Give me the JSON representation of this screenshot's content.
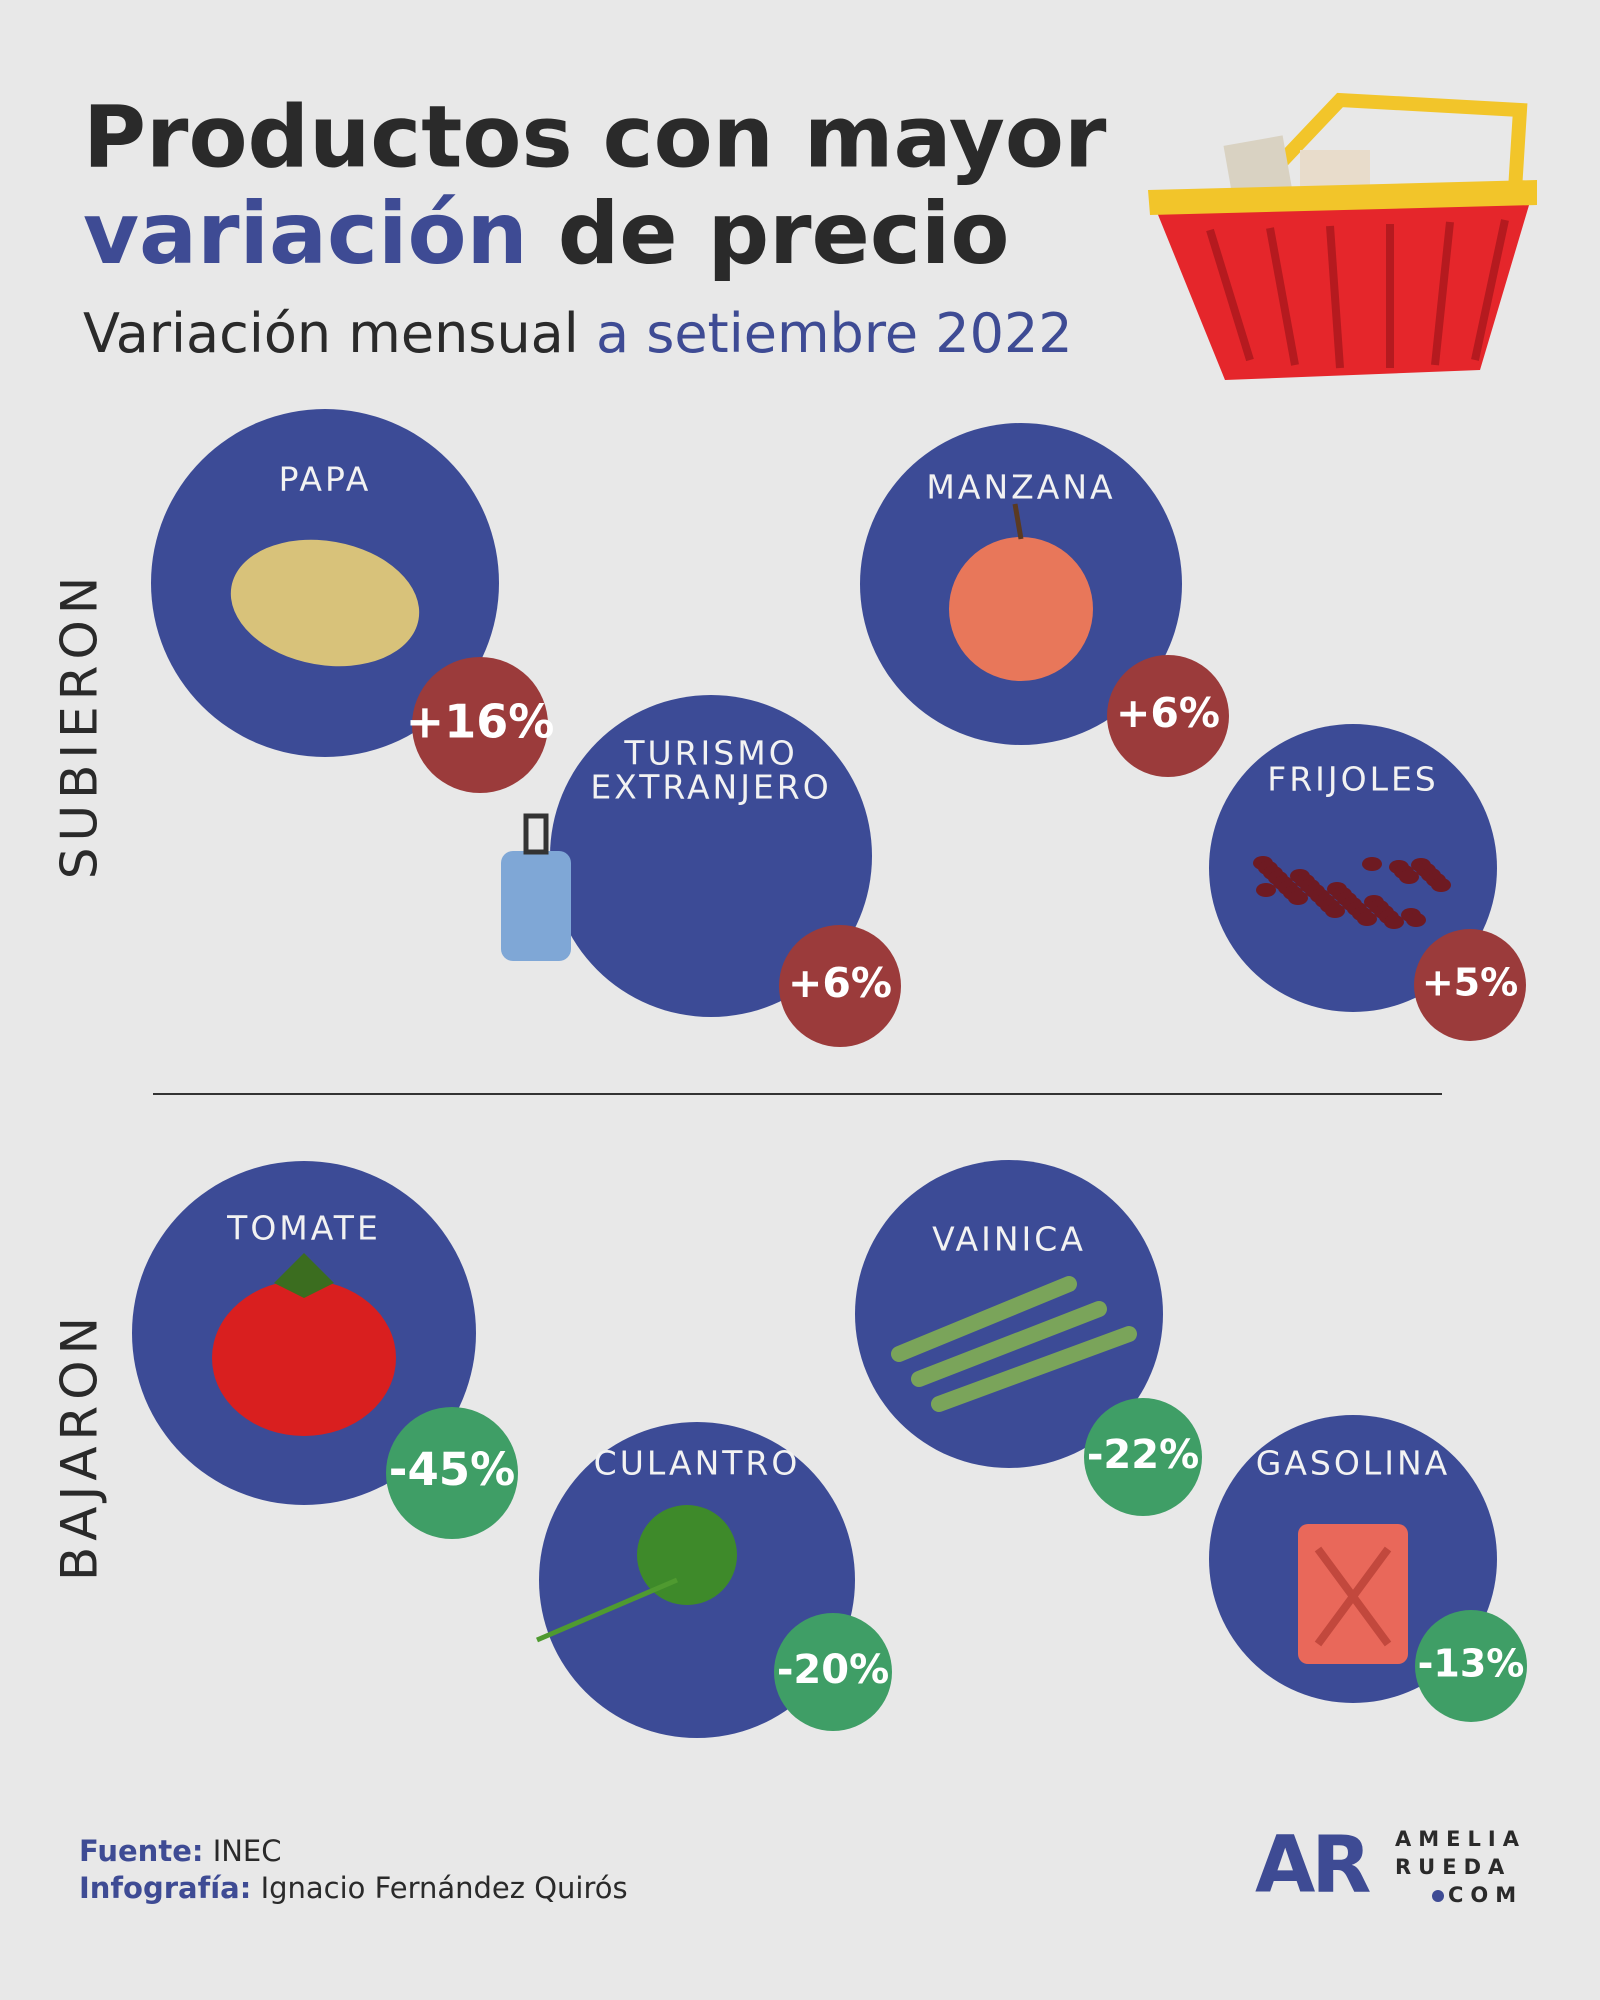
{
  "title": {
    "line1": "Productos con mayor",
    "highlight": "variación",
    "rest": "de precio"
  },
  "subtitle": {
    "plain": "Variación mensual",
    "highlight": "a setiembre 2022"
  },
  "sections": [
    {
      "label": "SUBIERON",
      "items": [
        {
          "name": [
            "PAPA"
          ],
          "change": "+16%"
        },
        {
          "name": [
            "TURISMO",
            "EXTRANJERO"
          ],
          "change": "+6%"
        },
        {
          "name": [
            "MANZANA"
          ],
          "change": "+6%"
        },
        {
          "name": [
            "FRIJOLES"
          ],
          "change": "+5%"
        }
      ]
    },
    {
      "label": "BAJARON",
      "items": [
        {
          "name": [
            "TOMATE"
          ],
          "change": "-45%"
        },
        {
          "name": [
            "CULANTRO"
          ],
          "change": "-20%"
        },
        {
          "name": [
            "VAINICA"
          ],
          "change": "-22%"
        },
        {
          "name": [
            "GASOLINA"
          ],
          "change": "-13%"
        }
      ]
    }
  ],
  "footer": {
    "source_label": "Fuente:",
    "source": "INEC",
    "credit_label": "Infografía:",
    "credit": "Ignacio Fernández Quirós"
  },
  "logo": {
    "mark": "AR",
    "line1": "AMELIA",
    "line2": "RUEDA",
    "line3": "COM"
  }
}
